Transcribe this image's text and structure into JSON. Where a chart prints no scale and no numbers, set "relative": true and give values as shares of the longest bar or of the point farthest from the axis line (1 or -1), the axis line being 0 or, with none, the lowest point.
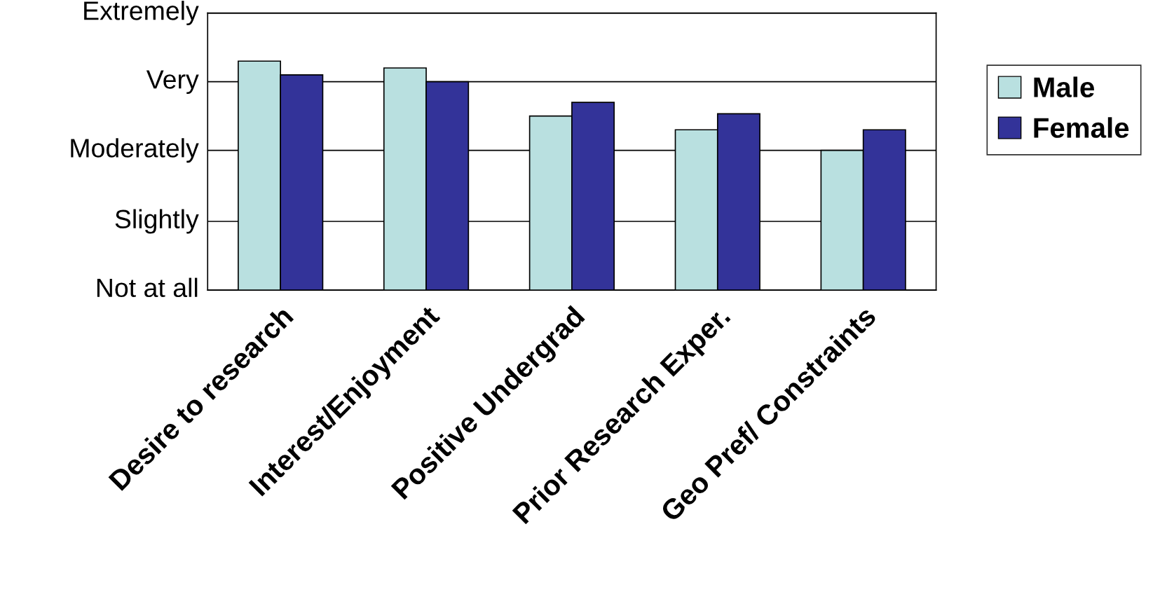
{
  "chart_data": {
    "type": "bar",
    "relative": true,
    "categories": [
      "Desire to research",
      "Interest/Enjoyment",
      "Positive Undergrad",
      "Prior Research Exper.",
      "Geo Pref/ Constraints"
    ],
    "series": [
      {
        "name": "Male",
        "color": "#b9e0e0",
        "values": [
          1.0,
          0.97,
          0.76,
          0.7,
          0.61
        ]
      },
      {
        "name": "Female",
        "color": "#333399",
        "values": [
          0.94,
          0.91,
          0.82,
          0.77,
          0.7
        ]
      }
    ],
    "ref_lines": [
      {
        "axis": "y",
        "value": 0,
        "label": "Not at all",
        "color": "#000000"
      },
      {
        "axis": "y",
        "value": 0.3,
        "label": "Slightly",
        "color": "#000000"
      },
      {
        "axis": "y",
        "value": 0.61,
        "label": "Moderately",
        "color": "#000000"
      },
      {
        "axis": "y",
        "value": 0.91,
        "label": "Very",
        "color": "#000000"
      },
      {
        "axis": "y",
        "value": 1.21,
        "label": "Extremely",
        "color": "#000000"
      }
    ],
    "legend": "right"
  }
}
